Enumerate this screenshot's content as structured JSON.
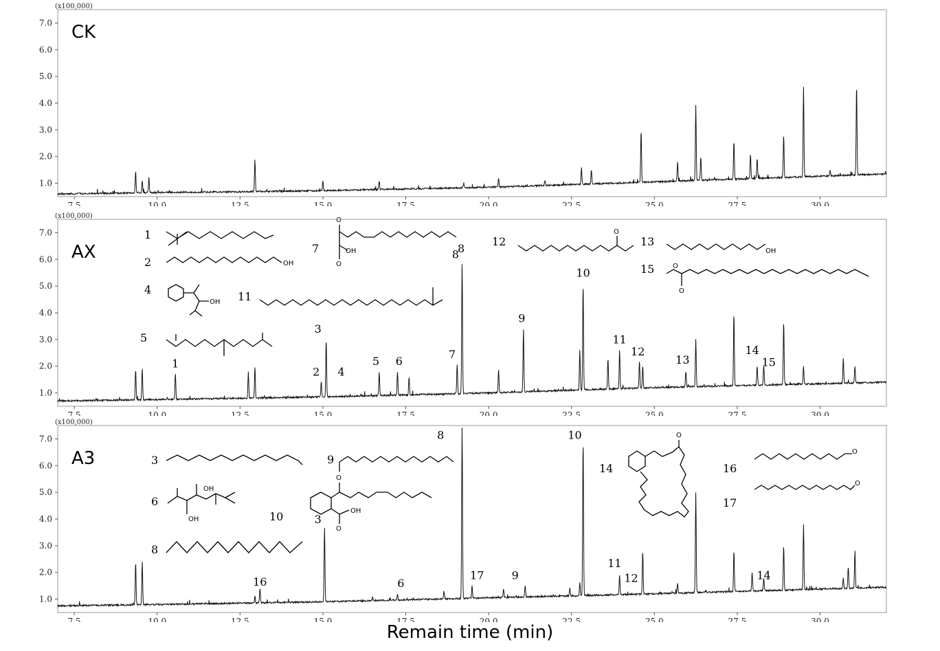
{
  "chart_data": {
    "type": "line",
    "xlabel": "Remain time (min)",
    "ylabel": "",
    "y_scale_note": "(x100,000)",
    "xlim": [
      7,
      32
    ],
    "ylim": [
      0.5,
      7.5
    ],
    "x_ticks": [
      "7.5",
      "10.0",
      "12.5",
      "15.0",
      "17.5",
      "20.0",
      "22.5",
      "25.0",
      "27.5",
      "30.0"
    ],
    "y_ticks": [
      "1.0",
      "2.0",
      "3.0",
      "4.0",
      "5.0",
      "6.0",
      "7.0"
    ],
    "grid": false,
    "panels": [
      {
        "name": "CK",
        "baseline": [
          [
            7,
            0.6
          ],
          [
            10,
            0.65
          ],
          [
            15,
            0.72
          ],
          [
            20,
            0.85
          ],
          [
            25,
            1.05
          ],
          [
            32,
            1.35
          ]
        ],
        "peaks": [
          [
            9.35,
            1.4
          ],
          [
            9.55,
            1.1
          ],
          [
            9.75,
            1.2
          ],
          [
            12.95,
            1.9
          ],
          [
            15.0,
            1.1
          ],
          [
            16.7,
            1.1
          ],
          [
            19.25,
            1.0
          ],
          [
            20.3,
            1.2
          ],
          [
            21.7,
            1.1
          ],
          [
            22.8,
            1.6
          ],
          [
            23.1,
            1.5
          ],
          [
            24.6,
            3.0
          ],
          [
            25.7,
            1.8
          ],
          [
            26.25,
            3.9
          ],
          [
            26.4,
            2.0
          ],
          [
            27.4,
            2.6
          ],
          [
            27.9,
            2.1
          ],
          [
            28.1,
            1.9
          ],
          [
            28.9,
            2.8
          ],
          [
            29.5,
            4.6
          ],
          [
            30.3,
            1.5
          ],
          [
            31.1,
            4.7
          ]
        ],
        "peak_labels": []
      },
      {
        "name": "AX",
        "baseline": [
          [
            7,
            0.7
          ],
          [
            10,
            0.75
          ],
          [
            15,
            0.85
          ],
          [
            20,
            1.0
          ],
          [
            25,
            1.2
          ],
          [
            32,
            1.4
          ]
        ],
        "peaks": [
          [
            9.35,
            1.9
          ],
          [
            9.55,
            1.9
          ],
          [
            10.55,
            1.7
          ],
          [
            12.75,
            1.8
          ],
          [
            12.95,
            2.0
          ],
          [
            14.95,
            1.4
          ],
          [
            15.1,
            3.0
          ],
          [
            16.7,
            1.8
          ],
          [
            17.25,
            1.8
          ],
          [
            17.6,
            1.6
          ],
          [
            19.05,
            2.1
          ],
          [
            19.2,
            5.9
          ],
          [
            20.3,
            1.9
          ],
          [
            21.05,
            3.4
          ],
          [
            22.75,
            2.6
          ],
          [
            22.85,
            5.1
          ],
          [
            23.6,
            2.3
          ],
          [
            23.95,
            2.6
          ],
          [
            24.55,
            2.2
          ],
          [
            24.65,
            2.0
          ],
          [
            25.95,
            1.8
          ],
          [
            26.25,
            3.0
          ],
          [
            27.4,
            4.0
          ],
          [
            28.1,
            2.0
          ],
          [
            28.3,
            2.0
          ],
          [
            28.9,
            3.7
          ],
          [
            29.5,
            2.0
          ],
          [
            30.7,
            2.3
          ],
          [
            31.05,
            2.0
          ]
        ],
        "peak_labels": [
          {
            "text": "1",
            "x": 10.55,
            "y": 1.95
          },
          {
            "text": "2",
            "x": 14.8,
            "y": 1.65
          },
          {
            "text": "3",
            "x": 14.85,
            "y": 3.25
          },
          {
            "text": "4",
            "x": 15.55,
            "y": 1.65
          },
          {
            "text": "5",
            "x": 16.6,
            "y": 2.05
          },
          {
            "text": "6",
            "x": 17.3,
            "y": 2.05
          },
          {
            "text": "7",
            "x": 18.9,
            "y": 2.3
          },
          {
            "text": "8",
            "x": 19.0,
            "y": 6.05
          },
          {
            "text": "9",
            "x": 21.0,
            "y": 3.65
          },
          {
            "text": "10",
            "x": 22.85,
            "y": 5.35
          },
          {
            "text": "11",
            "x": 23.95,
            "y": 2.85
          },
          {
            "text": "12",
            "x": 24.5,
            "y": 2.4
          },
          {
            "text": "13",
            "x": 25.85,
            "y": 2.1
          },
          {
            "text": "14",
            "x": 27.95,
            "y": 2.45
          },
          {
            "text": "15",
            "x": 28.45,
            "y": 2.0
          }
        ]
      },
      {
        "name": "A3",
        "baseline": [
          [
            7,
            0.75
          ],
          [
            10,
            0.8
          ],
          [
            15,
            0.9
          ],
          [
            20,
            1.05
          ],
          [
            25,
            1.2
          ],
          [
            32,
            1.45
          ]
        ],
        "peaks": [
          [
            9.35,
            2.4
          ],
          [
            9.55,
            2.4
          ],
          [
            12.95,
            1.1
          ],
          [
            13.1,
            1.4
          ],
          [
            15.05,
            3.7
          ],
          [
            16.5,
            1.1
          ],
          [
            17.25,
            1.2
          ],
          [
            18.65,
            1.3
          ],
          [
            19.2,
            7.5
          ],
          [
            19.5,
            1.5
          ],
          [
            20.45,
            1.4
          ],
          [
            21.1,
            1.5
          ],
          [
            22.45,
            1.4
          ],
          [
            22.75,
            1.6
          ],
          [
            22.85,
            7.0
          ],
          [
            23.95,
            1.9
          ],
          [
            24.65,
            2.8
          ],
          [
            25.7,
            1.6
          ],
          [
            26.25,
            5.0
          ],
          [
            27.4,
            2.8
          ],
          [
            27.95,
            2.0
          ],
          [
            28.3,
            1.8
          ],
          [
            28.9,
            3.0
          ],
          [
            29.5,
            3.8
          ],
          [
            30.7,
            1.8
          ],
          [
            30.85,
            2.2
          ],
          [
            31.05,
            2.8
          ]
        ],
        "peak_labels": [
          {
            "text": "16",
            "x": 13.1,
            "y": 1.5
          },
          {
            "text": "3",
            "x": 14.85,
            "y": 3.85
          },
          {
            "text": "6",
            "x": 17.35,
            "y": 1.45
          },
          {
            "text": "8",
            "x": 18.55,
            "y": 7.0
          },
          {
            "text": "17",
            "x": 19.65,
            "y": 1.75
          },
          {
            "text": "9",
            "x": 20.8,
            "y": 1.75
          },
          {
            "text": "10",
            "x": 22.6,
            "y": 7.0
          },
          {
            "text": "11",
            "x": 23.8,
            "y": 2.2
          },
          {
            "text": "12",
            "x": 24.3,
            "y": 1.65
          },
          {
            "text": "14",
            "x": 28.3,
            "y": 1.75
          }
        ]
      }
    ]
  },
  "structure_legends": {
    "AX": [
      "1",
      "2",
      "4",
      "5",
      "7",
      "8",
      "11",
      "12",
      "13",
      "15"
    ],
    "A3": [
      "3",
      "6",
      "8",
      "9",
      "10",
      "14",
      "16",
      "17"
    ]
  },
  "structure_text": {
    "oh": "OH",
    "o": "O"
  }
}
